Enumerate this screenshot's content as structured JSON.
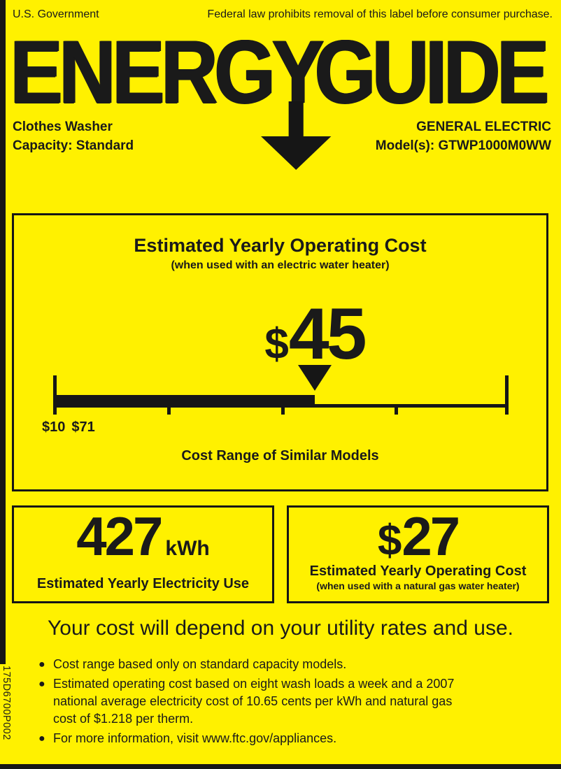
{
  "theme": {
    "background": "#FFF100",
    "ink": "#1A1A1A"
  },
  "header": {
    "left_text": "U.S. Government",
    "right_text": "Federal law prohibits removal of this label before consumer purchase."
  },
  "logo": {
    "word_part1": "ENERG",
    "word_part2": "Y",
    "word_part3": "GUIDE"
  },
  "product": {
    "type": "Clothes Washer",
    "capacity": "Capacity: Standard",
    "brand": "GENERAL ELECTRIC",
    "model": "Model(s): GTWP1000M0WW"
  },
  "main_panel": {
    "title": "Estimated Yearly Operating Cost",
    "subtitle": "(when used with an electric water heater)",
    "cost_symbol": "$",
    "cost_value": "45",
    "scale": {
      "min_label": "$10",
      "max_label": "$71",
      "min_value": 10,
      "max_value": 71,
      "marker_value": 45,
      "caption": "Cost Range of Similar Models"
    }
  },
  "electricity_panel": {
    "value": "427",
    "unit": "kWh",
    "caption": "Estimated Yearly Electricity Use"
  },
  "gas_panel": {
    "cost_symbol": "$",
    "cost_value": "27",
    "caption": "Estimated Yearly Operating Cost",
    "subcaption": "(when used with a natural gas water heater)"
  },
  "footer": {
    "headline": "Your cost will depend on your utility rates and use.",
    "bullets": [
      "Cost range based only on standard capacity models.",
      "Estimated operating cost based on eight wash loads a week and a 2007 national average electricity cost of 10.65 cents per kWh and natural gas cost of $1.218 per therm.",
      "For more information, visit www.ftc.gov/appliances."
    ],
    "part_number": "175D6700P002"
  }
}
